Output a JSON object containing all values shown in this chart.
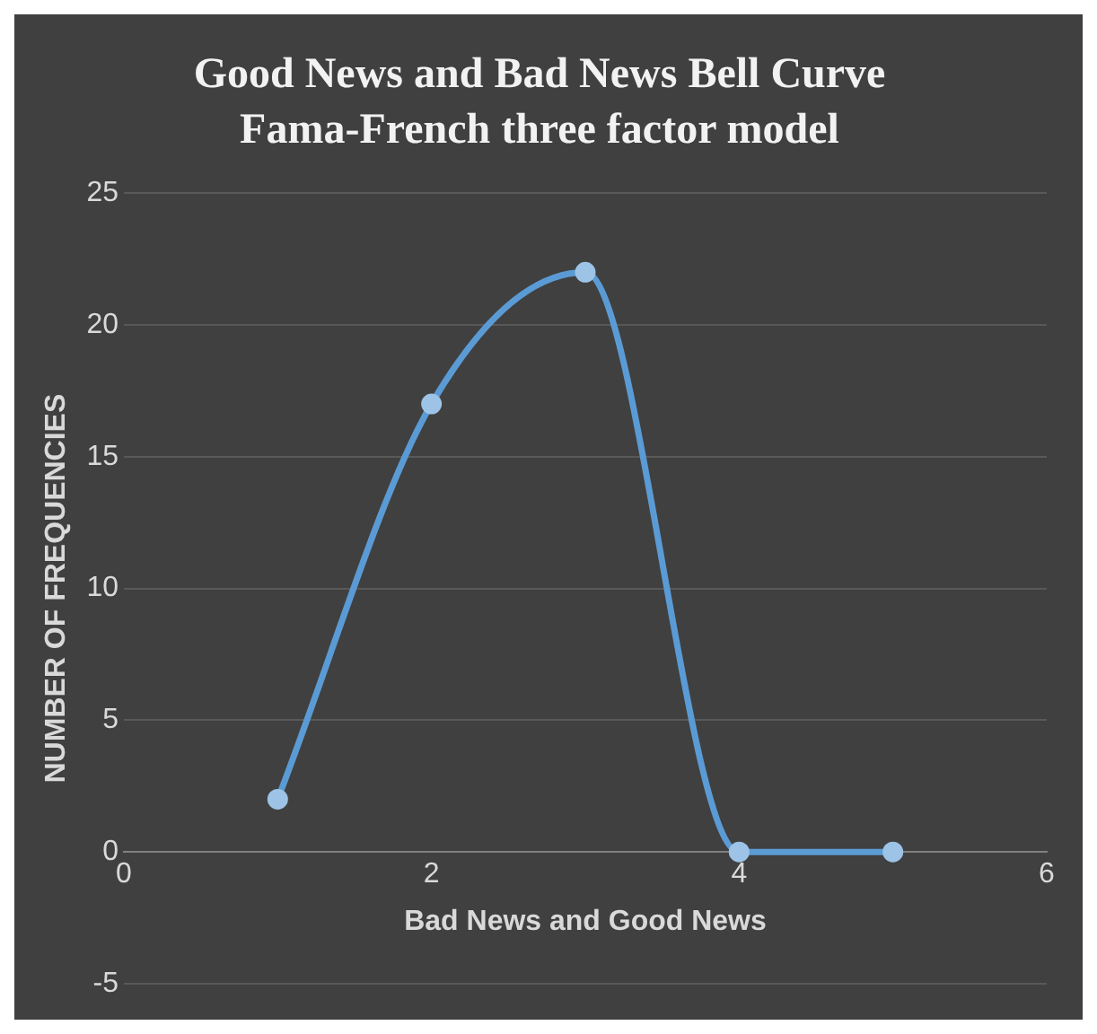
{
  "chart_data": {
    "type": "line",
    "title": "Good News and Bad News Bell Curve",
    "subtitle": "Fama-French three factor model",
    "xlabel": "Bad News and Good News",
    "ylabel": "NUMBER OF FREQUENCIES",
    "x": [
      1,
      2,
      3,
      4,
      5
    ],
    "series": [
      {
        "color": "#5b9bd5",
        "values": [
          2,
          17,
          22,
          0,
          0
        ]
      }
    ],
    "xlim": [
      0,
      6
    ],
    "xticks": [
      0,
      2,
      4,
      6
    ],
    "ylim": [
      -5,
      25
    ],
    "yticks": [
      -5,
      0,
      5,
      10,
      15,
      20,
      25
    ],
    "grid": "y",
    "legend": false,
    "marker": "circle",
    "line_style": "solid"
  }
}
